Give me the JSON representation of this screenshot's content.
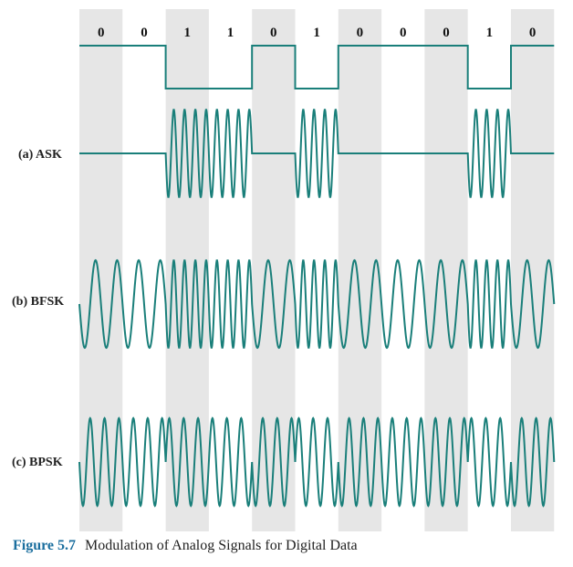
{
  "bits": [
    "0",
    "0",
    "1",
    "1",
    "0",
    "1",
    "0",
    "0",
    "0",
    "1",
    "0"
  ],
  "labels": {
    "ask": "(a) ASK",
    "bfsk": "(b) BFSK",
    "bpsk": "(c) BPSK"
  },
  "caption": {
    "number": "Figure 5.7",
    "text": "Modulation of Analog Signals for Digital Data"
  },
  "colors": {
    "waveform": "#1a7f7a",
    "shading": "#e6e6e6"
  }
}
